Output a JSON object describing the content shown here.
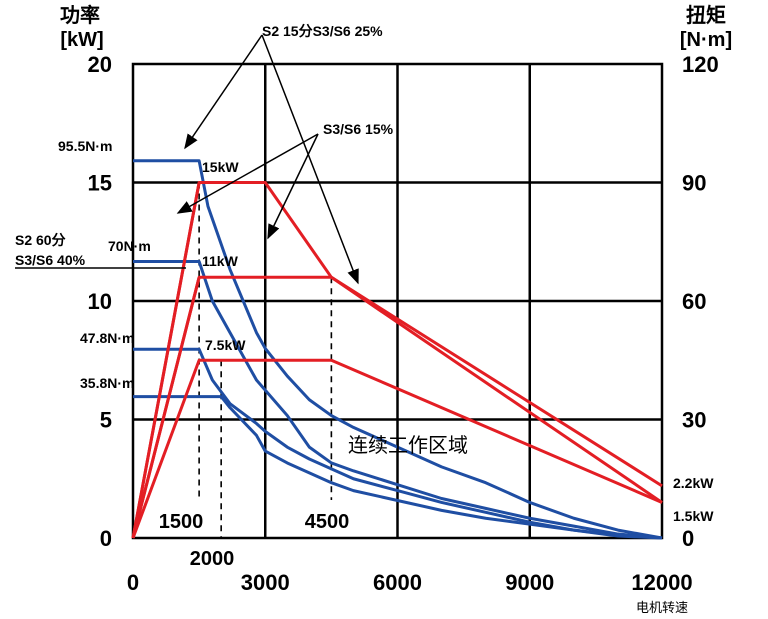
{
  "chart_data": {
    "type": "line",
    "left_axis": {
      "title": "功率",
      "unit": "[kW]",
      "range": [
        0,
        20
      ],
      "ticks": [
        "0",
        "5",
        "10",
        "15",
        "20"
      ]
    },
    "right_axis": {
      "title": "扭矩",
      "unit": "[N·m]",
      "range": [
        0,
        120
      ],
      "ticks": [
        "0",
        "30",
        "60",
        "90",
        "120"
      ]
    },
    "x_axis": {
      "label": "电机转速",
      "range": [
        0,
        12000
      ],
      "ticks": [
        "0",
        "3000",
        "6000",
        "9000",
        "12000"
      ]
    },
    "grid": true,
    "power_series": [
      {
        "color": "#e31e24",
        "points": [
          [
            0,
            0
          ],
          [
            1500,
            15
          ],
          [
            3000,
            15
          ],
          [
            4500,
            11
          ],
          [
            12000,
            2.2
          ]
        ]
      },
      {
        "color": "#e31e24",
        "points": [
          [
            0,
            0
          ],
          [
            1500,
            11
          ],
          [
            4500,
            11
          ],
          [
            12000,
            1.5
          ]
        ]
      },
      {
        "color": "#e31e24",
        "points": [
          [
            0,
            0
          ],
          [
            1500,
            7.5
          ],
          [
            4500,
            7.5
          ],
          [
            12000,
            1.5
          ]
        ]
      },
      {
        "color": "#e31e24",
        "points": [
          [
            0,
            0
          ],
          [
            1500,
            15
          ]
        ]
      },
      {
        "color": "#e31e24",
        "points": [
          [
            0,
            0
          ],
          [
            1500,
            11
          ]
        ]
      }
    ],
    "torque_series": [
      {
        "color": "#1f4ea3",
        "points": [
          [
            0,
            95.5
          ],
          [
            1500,
            95.5
          ],
          [
            1700,
            84
          ],
          [
            2200,
            68
          ],
          [
            2800,
            52
          ],
          [
            3000,
            48
          ],
          [
            3500,
            41
          ],
          [
            4000,
            35
          ],
          [
            4500,
            31
          ],
          [
            5000,
            28
          ],
          [
            6000,
            23
          ],
          [
            7000,
            18
          ],
          [
            8000,
            14
          ],
          [
            9000,
            9
          ],
          [
            10000,
            5
          ],
          [
            11000,
            2
          ],
          [
            12000,
            0
          ]
        ]
      },
      {
        "color": "#1f4ea3",
        "points": [
          [
            0,
            70
          ],
          [
            1500,
            70
          ],
          [
            1800,
            60
          ],
          [
            2200,
            52
          ],
          [
            2800,
            40
          ],
          [
            3500,
            31
          ],
          [
            4000,
            23
          ],
          [
            4500,
            19
          ],
          [
            5000,
            17
          ],
          [
            6000,
            13.5
          ],
          [
            7000,
            10
          ],
          [
            8000,
            7.5
          ],
          [
            9000,
            5
          ],
          [
            10000,
            3
          ],
          [
            11000,
            1
          ],
          [
            12000,
            0
          ]
        ]
      },
      {
        "color": "#1f4ea3",
        "points": [
          [
            0,
            47.8
          ],
          [
            1500,
            47.8
          ],
          [
            1800,
            40
          ],
          [
            2200,
            34
          ],
          [
            2800,
            29
          ],
          [
            3000,
            27
          ],
          [
            3500,
            23
          ],
          [
            4000,
            20
          ],
          [
            4500,
            17.5
          ],
          [
            5000,
            15
          ],
          [
            6000,
            12
          ],
          [
            7000,
            9
          ],
          [
            8000,
            6.5
          ],
          [
            9000,
            4
          ],
          [
            10000,
            2
          ],
          [
            11000,
            0.5
          ],
          [
            12000,
            0
          ]
        ]
      },
      {
        "color": "#1f4ea3",
        "points": [
          [
            0,
            35.8
          ],
          [
            2000,
            35.8
          ],
          [
            2200,
            33
          ],
          [
            2800,
            26
          ],
          [
            3000,
            22
          ],
          [
            3500,
            19
          ],
          [
            4000,
            16.5
          ],
          [
            4500,
            14
          ],
          [
            5000,
            12
          ],
          [
            6000,
            9.5
          ],
          [
            7000,
            7
          ],
          [
            8000,
            5
          ],
          [
            9000,
            3.5
          ],
          [
            10000,
            2
          ],
          [
            11000,
            0.7
          ],
          [
            12000,
            0
          ]
        ]
      }
    ],
    "speed_markers": [
      {
        "x": 1500,
        "label": "1500"
      },
      {
        "x": 2000,
        "label": "2000"
      },
      {
        "x": 4500,
        "label": "4500"
      }
    ],
    "annotations": {
      "s2_15": "S2 15分S3/S6 25%",
      "s3_15": "S3/S6 15%",
      "s2_60_a": "S2 60分",
      "s2_60_b": "S3/S6 40%",
      "t95": "95.5N·m",
      "t70": "70N·m",
      "t47": "47.8N·m",
      "t35": "35.8N·m",
      "p15": "15kW",
      "p11": "11kW",
      "p75": "7.5kW",
      "p22": "2.2kW",
      "p15b": "1.5kW",
      "continuous": "连续工作区域"
    }
  }
}
